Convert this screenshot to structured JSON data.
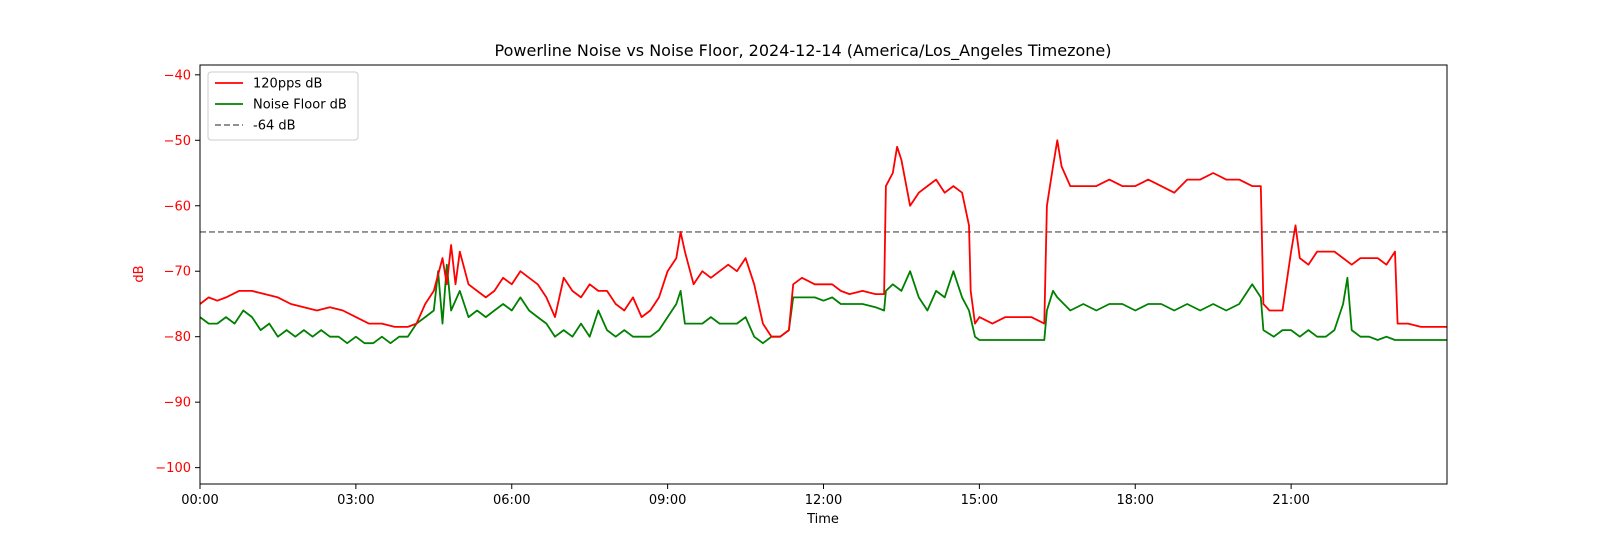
{
  "chart_data": {
    "type": "line",
    "title": "Powerline Noise vs Noise Floor, 2024-12-14 (America/Los_Angeles Timezone)",
    "xlabel": "Time",
    "ylabel": "dB",
    "ylim": [
      -102.5,
      -38.5
    ],
    "xlim": [
      "00:00",
      "24:00"
    ],
    "x_ticks": [
      "00:00",
      "03:00",
      "06:00",
      "09:00",
      "12:00",
      "15:00",
      "18:00",
      "21:00"
    ],
    "y_ticks": [
      -40,
      -50,
      -60,
      -70,
      -80,
      -90,
      -100
    ],
    "legend_position": "top-left",
    "grid": false,
    "series": [
      {
        "name": "120pps dB",
        "color": "#ff0000",
        "style": "solid",
        "points": [
          [
            "00:00",
            -75
          ],
          [
            "00:10",
            -74
          ],
          [
            "00:20",
            -74.5
          ],
          [
            "00:30",
            -74
          ],
          [
            "00:45",
            -73
          ],
          [
            "01:00",
            -73
          ],
          [
            "01:15",
            -73.5
          ],
          [
            "01:30",
            -74
          ],
          [
            "01:45",
            -75
          ],
          [
            "02:00",
            -75.5
          ],
          [
            "02:15",
            -76
          ],
          [
            "02:30",
            -75.5
          ],
          [
            "02:45",
            -76
          ],
          [
            "03:00",
            -77
          ],
          [
            "03:15",
            -78
          ],
          [
            "03:30",
            -78
          ],
          [
            "03:45",
            -78.5
          ],
          [
            "04:00",
            -78.5
          ],
          [
            "04:10",
            -78
          ],
          [
            "04:20",
            -75
          ],
          [
            "04:30",
            -73
          ],
          [
            "04:40",
            -68
          ],
          [
            "04:45",
            -72
          ],
          [
            "04:50",
            -66
          ],
          [
            "04:55",
            -72
          ],
          [
            "05:00",
            -67
          ],
          [
            "05:10",
            -72
          ],
          [
            "05:20",
            -73
          ],
          [
            "05:30",
            -74
          ],
          [
            "05:40",
            -73
          ],
          [
            "05:50",
            -71
          ],
          [
            "06:00",
            -72
          ],
          [
            "06:10",
            -70
          ],
          [
            "06:20",
            -71
          ],
          [
            "06:30",
            -72
          ],
          [
            "06:40",
            -74
          ],
          [
            "06:50",
            -77
          ],
          [
            "07:00",
            -71
          ],
          [
            "07:10",
            -73
          ],
          [
            "07:20",
            -74
          ],
          [
            "07:30",
            -72
          ],
          [
            "07:40",
            -73
          ],
          [
            "07:50",
            -73
          ],
          [
            "08:00",
            -75
          ],
          [
            "08:10",
            -76
          ],
          [
            "08:20",
            -74
          ],
          [
            "08:30",
            -77
          ],
          [
            "08:40",
            -76
          ],
          [
            "08:50",
            -74
          ],
          [
            "09:00",
            -70
          ],
          [
            "09:10",
            -68
          ],
          [
            "09:15",
            -64
          ],
          [
            "09:20",
            -67
          ],
          [
            "09:30",
            -72
          ],
          [
            "09:40",
            -70
          ],
          [
            "09:50",
            -71
          ],
          [
            "10:00",
            -70
          ],
          [
            "10:10",
            -69
          ],
          [
            "10:20",
            -70
          ],
          [
            "10:30",
            -68
          ],
          [
            "10:40",
            -72
          ],
          [
            "10:50",
            -78
          ],
          [
            "11:00",
            -80
          ],
          [
            "11:10",
            -80
          ],
          [
            "11:20",
            -79
          ],
          [
            "11:25",
            -72
          ],
          [
            "11:35",
            -71
          ],
          [
            "11:50",
            -72
          ],
          [
            "12:00",
            -72
          ],
          [
            "12:10",
            -72
          ],
          [
            "12:20",
            -73
          ],
          [
            "12:30",
            -73.5
          ],
          [
            "12:45",
            -73
          ],
          [
            "13:00",
            -73.5
          ],
          [
            "13:10",
            -73.5
          ],
          [
            "13:12",
            -57
          ],
          [
            "13:20",
            -55
          ],
          [
            "13:25",
            -51
          ],
          [
            "13:30",
            -53
          ],
          [
            "13:40",
            -60
          ],
          [
            "13:50",
            -58
          ],
          [
            "14:00",
            -57
          ],
          [
            "14:10",
            -56
          ],
          [
            "14:20",
            -58
          ],
          [
            "14:30",
            -57
          ],
          [
            "14:40",
            -58
          ],
          [
            "14:48",
            -63
          ],
          [
            "14:50",
            -73
          ],
          [
            "14:55",
            -78
          ],
          [
            "15:00",
            -77
          ],
          [
            "15:15",
            -78
          ],
          [
            "15:30",
            -77
          ],
          [
            "15:45",
            -77
          ],
          [
            "16:00",
            -77
          ],
          [
            "16:15",
            -78
          ],
          [
            "16:18",
            -60
          ],
          [
            "16:25",
            -54
          ],
          [
            "16:30",
            -50
          ],
          [
            "16:35",
            -54
          ],
          [
            "16:45",
            -57
          ],
          [
            "17:00",
            -57
          ],
          [
            "17:15",
            -57
          ],
          [
            "17:30",
            -56
          ],
          [
            "17:45",
            -57
          ],
          [
            "18:00",
            -57
          ],
          [
            "18:15",
            -56
          ],
          [
            "18:30",
            -57
          ],
          [
            "18:45",
            -58
          ],
          [
            "19:00",
            -56
          ],
          [
            "19:15",
            -56
          ],
          [
            "19:30",
            -55
          ],
          [
            "19:45",
            -56
          ],
          [
            "20:00",
            -56
          ],
          [
            "20:15",
            -57
          ],
          [
            "20:25",
            -57
          ],
          [
            "20:28",
            -75
          ],
          [
            "20:35",
            -76
          ],
          [
            "20:50",
            -76
          ],
          [
            "21:00",
            -67
          ],
          [
            "21:05",
            -63
          ],
          [
            "21:10",
            -68
          ],
          [
            "21:20",
            -69
          ],
          [
            "21:30",
            -67
          ],
          [
            "21:40",
            -67
          ],
          [
            "21:50",
            -67
          ],
          [
            "22:00",
            -68
          ],
          [
            "22:10",
            -69
          ],
          [
            "22:20",
            -68
          ],
          [
            "22:30",
            -68
          ],
          [
            "22:40",
            -68
          ],
          [
            "22:50",
            -69
          ],
          [
            "23:00",
            -67
          ],
          [
            "23:03",
            -78
          ],
          [
            "23:15",
            -78
          ],
          [
            "23:30",
            -78.5
          ],
          [
            "23:45",
            -78.5
          ],
          [
            "24:00",
            -78.5
          ]
        ]
      },
      {
        "name": "Noise Floor dB",
        "color": "#008000",
        "style": "solid",
        "points": [
          [
            "00:00",
            -77
          ],
          [
            "00:10",
            -78
          ],
          [
            "00:20",
            -78
          ],
          [
            "00:30",
            -77
          ],
          [
            "00:40",
            -78
          ],
          [
            "00:50",
            -76
          ],
          [
            "01:00",
            -77
          ],
          [
            "01:10",
            -79
          ],
          [
            "01:20",
            -78
          ],
          [
            "01:30",
            -80
          ],
          [
            "01:40",
            -79
          ],
          [
            "01:50",
            -80
          ],
          [
            "02:00",
            -79
          ],
          [
            "02:10",
            -80
          ],
          [
            "02:20",
            -79
          ],
          [
            "02:30",
            -80
          ],
          [
            "02:40",
            -80
          ],
          [
            "02:50",
            -81
          ],
          [
            "03:00",
            -80
          ],
          [
            "03:10",
            -81
          ],
          [
            "03:20",
            -81
          ],
          [
            "03:30",
            -80
          ],
          [
            "03:40",
            -81
          ],
          [
            "03:50",
            -80
          ],
          [
            "04:00",
            -80
          ],
          [
            "04:10",
            -78
          ],
          [
            "04:20",
            -77
          ],
          [
            "04:30",
            -76
          ],
          [
            "04:35",
            -70
          ],
          [
            "04:40",
            -78
          ],
          [
            "04:45",
            -69
          ],
          [
            "04:50",
            -76
          ],
          [
            "05:00",
            -73
          ],
          [
            "05:10",
            -77
          ],
          [
            "05:20",
            -76
          ],
          [
            "05:30",
            -77
          ],
          [
            "05:40",
            -76
          ],
          [
            "05:50",
            -75
          ],
          [
            "06:00",
            -76
          ],
          [
            "06:10",
            -74
          ],
          [
            "06:20",
            -76
          ],
          [
            "06:30",
            -77
          ],
          [
            "06:40",
            -78
          ],
          [
            "06:50",
            -80
          ],
          [
            "07:00",
            -79
          ],
          [
            "07:10",
            -80
          ],
          [
            "07:20",
            -78
          ],
          [
            "07:30",
            -80
          ],
          [
            "07:40",
            -76
          ],
          [
            "07:50",
            -79
          ],
          [
            "08:00",
            -80
          ],
          [
            "08:10",
            -79
          ],
          [
            "08:20",
            -80
          ],
          [
            "08:30",
            -80
          ],
          [
            "08:40",
            -80
          ],
          [
            "08:50",
            -79
          ],
          [
            "09:00",
            -77
          ],
          [
            "09:10",
            -75
          ],
          [
            "09:15",
            -73
          ],
          [
            "09:20",
            -78
          ],
          [
            "09:30",
            -78
          ],
          [
            "09:40",
            -78
          ],
          [
            "09:50",
            -77
          ],
          [
            "10:00",
            -78
          ],
          [
            "10:10",
            -78
          ],
          [
            "10:20",
            -78
          ],
          [
            "10:30",
            -77
          ],
          [
            "10:40",
            -80
          ],
          [
            "10:50",
            -81
          ],
          [
            "11:00",
            -80
          ],
          [
            "11:10",
            -80
          ],
          [
            "11:20",
            -79
          ],
          [
            "11:25",
            -74
          ],
          [
            "11:35",
            -74
          ],
          [
            "11:50",
            -74
          ],
          [
            "12:00",
            -74.5
          ],
          [
            "12:10",
            -74
          ],
          [
            "12:20",
            -75
          ],
          [
            "12:30",
            -75
          ],
          [
            "12:45",
            -75
          ],
          [
            "13:00",
            -75.5
          ],
          [
            "13:10",
            -76
          ],
          [
            "13:12",
            -73
          ],
          [
            "13:20",
            -72
          ],
          [
            "13:30",
            -73
          ],
          [
            "13:40",
            -70
          ],
          [
            "13:50",
            -74
          ],
          [
            "14:00",
            -76
          ],
          [
            "14:10",
            -73
          ],
          [
            "14:20",
            -74
          ],
          [
            "14:30",
            -70
          ],
          [
            "14:40",
            -74
          ],
          [
            "14:48",
            -76
          ],
          [
            "14:55",
            -80
          ],
          [
            "15:00",
            -80.5
          ],
          [
            "15:15",
            -80.5
          ],
          [
            "15:30",
            -80.5
          ],
          [
            "15:45",
            -80.5
          ],
          [
            "16:00",
            -80.5
          ],
          [
            "16:15",
            -80.5
          ],
          [
            "16:18",
            -76
          ],
          [
            "16:25",
            -73
          ],
          [
            "16:30",
            -74
          ],
          [
            "16:45",
            -76
          ],
          [
            "17:00",
            -75
          ],
          [
            "17:15",
            -76
          ],
          [
            "17:30",
            -75
          ],
          [
            "17:45",
            -75
          ],
          [
            "18:00",
            -76
          ],
          [
            "18:15",
            -75
          ],
          [
            "18:30",
            -75
          ],
          [
            "18:45",
            -76
          ],
          [
            "19:00",
            -75
          ],
          [
            "19:15",
            -76
          ],
          [
            "19:30",
            -75
          ],
          [
            "19:45",
            -76
          ],
          [
            "20:00",
            -75
          ],
          [
            "20:15",
            -72
          ],
          [
            "20:25",
            -74
          ],
          [
            "20:28",
            -79
          ],
          [
            "20:40",
            -80
          ],
          [
            "20:50",
            -79
          ],
          [
            "21:00",
            -79
          ],
          [
            "21:10",
            -80
          ],
          [
            "21:20",
            -79
          ],
          [
            "21:30",
            -80
          ],
          [
            "21:40",
            -80
          ],
          [
            "21:50",
            -79
          ],
          [
            "22:00",
            -75
          ],
          [
            "22:05",
            -71
          ],
          [
            "22:10",
            -79
          ],
          [
            "22:20",
            -80
          ],
          [
            "22:30",
            -80
          ],
          [
            "22:40",
            -80.5
          ],
          [
            "22:50",
            -80
          ],
          [
            "23:00",
            -80.5
          ],
          [
            "23:15",
            -80.5
          ],
          [
            "23:30",
            -80.5
          ],
          [
            "23:45",
            -80.5
          ],
          [
            "24:00",
            -80.5
          ]
        ]
      },
      {
        "name": "-64 dB",
        "color": "#808080",
        "style": "dashed",
        "points": [
          [
            "00:00",
            -64
          ],
          [
            "24:00",
            -64
          ]
        ]
      }
    ]
  }
}
